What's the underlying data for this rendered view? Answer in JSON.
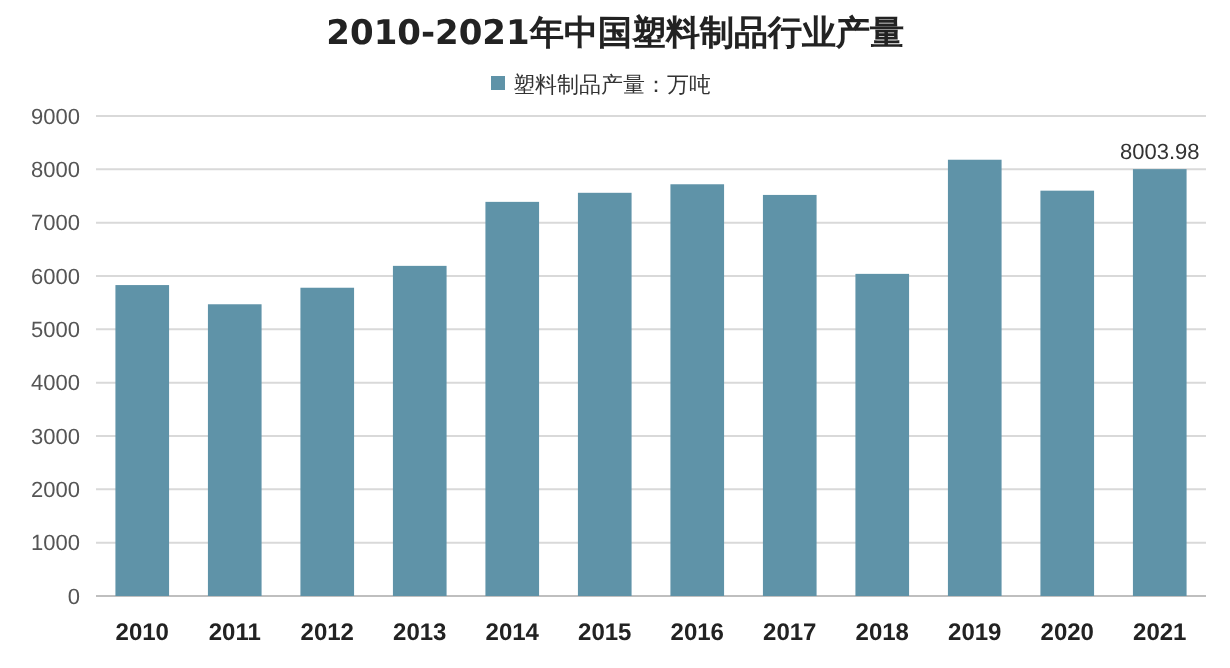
{
  "chart_data": {
    "type": "bar",
    "title": "2010-2021年中国塑料制品行业产量",
    "categories": [
      "2010",
      "2011",
      "2012",
      "2013",
      "2014",
      "2015",
      "2016",
      "2017",
      "2018",
      "2019",
      "2020",
      "2021"
    ],
    "series": [
      {
        "name": "塑料制品产量：万吨",
        "color": "#5f93a8",
        "values": [
          5830,
          5470,
          5780,
          6190,
          7390,
          7560,
          7720,
          7520,
          6040,
          8180,
          7600,
          8003.98
        ],
        "value_labels": [
          null,
          null,
          null,
          null,
          null,
          null,
          null,
          null,
          null,
          null,
          null,
          "8003.98"
        ]
      }
    ],
    "ylim": [
      0,
      9000
    ],
    "yticks": [
      0,
      1000,
      2000,
      3000,
      4000,
      5000,
      6000,
      7000,
      8000,
      9000
    ],
    "grid": "y",
    "legend": "top"
  }
}
